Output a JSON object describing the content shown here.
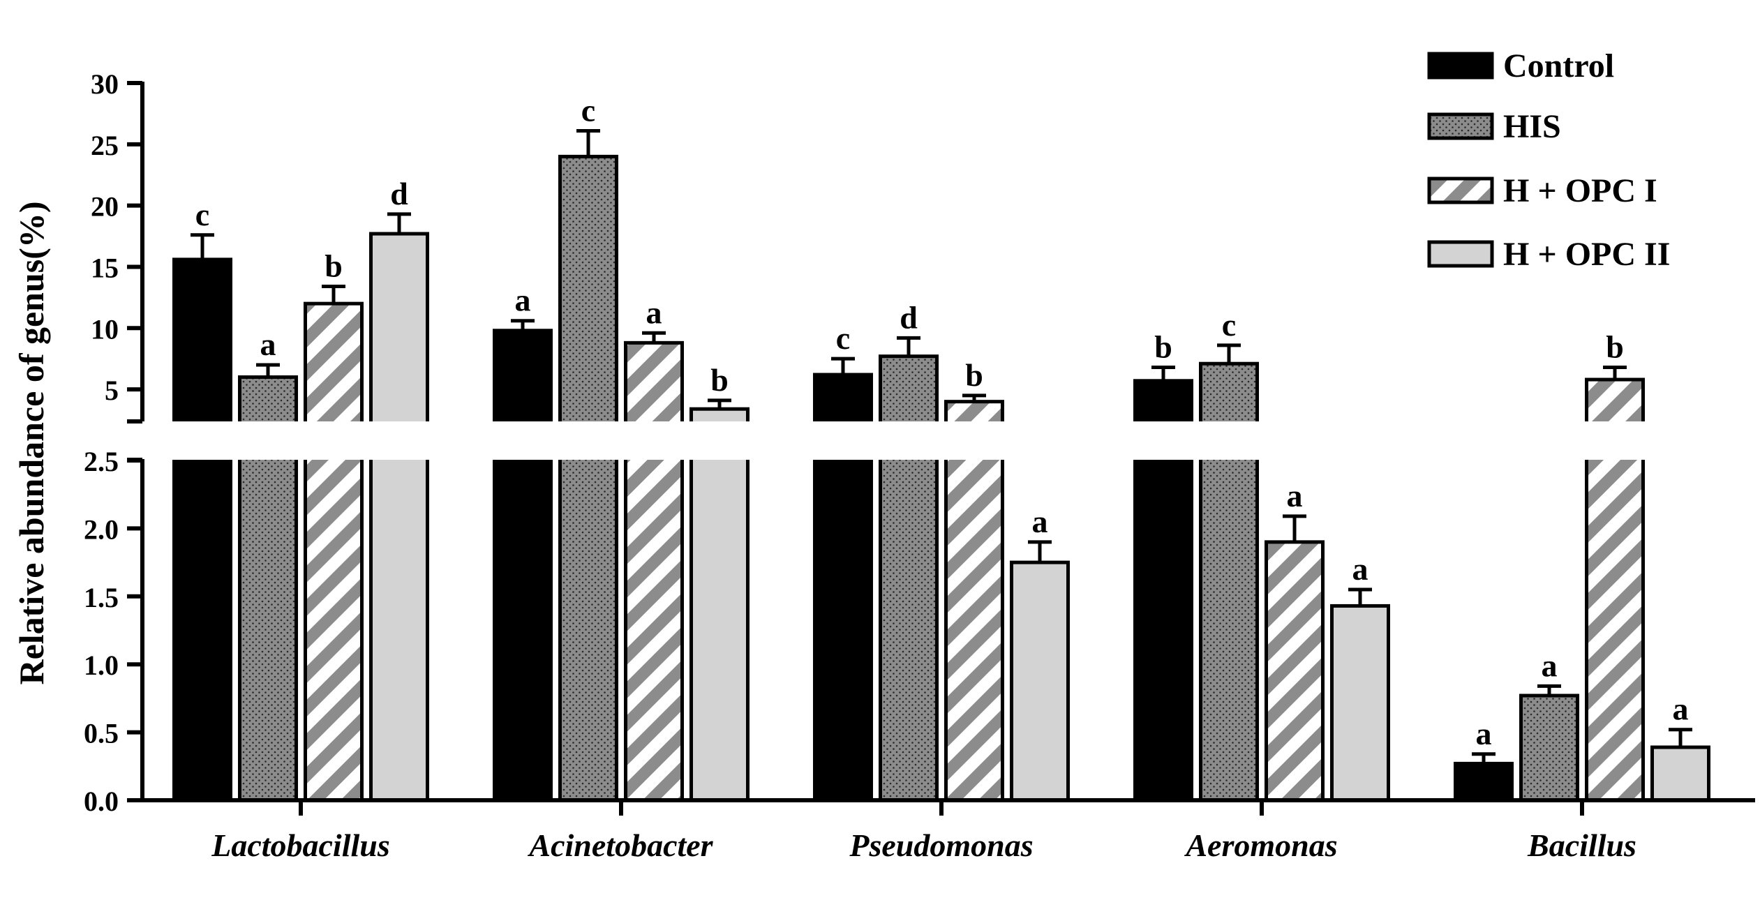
{
  "chart_data": {
    "type": "bar",
    "ylabel": "Relative abundance of genus(%)",
    "xlabel": "",
    "categories": [
      "Lactobacillus",
      "Acinetobacter",
      "Pseudomonas",
      "Aeromonas",
      "Bacillus"
    ],
    "series": [
      {
        "name": "Control",
        "fill": "#000000",
        "pattern": "solid",
        "values": [
          15.6,
          9.8,
          6.2,
          5.7,
          0.27
        ],
        "errors": [
          2.0,
          0.8,
          1.3,
          1.1,
          0.07
        ],
        "letters": [
          "c",
          "a",
          "c",
          "b",
          "a"
        ]
      },
      {
        "name": "HIS",
        "fill": "#8c8c8c",
        "pattern": "dotted",
        "values": [
          6.0,
          24.0,
          7.7,
          7.1,
          0.77
        ],
        "errors": [
          1.0,
          2.1,
          1.5,
          1.5,
          0.07
        ],
        "letters": [
          "a",
          "c",
          "d",
          "c",
          "a"
        ]
      },
      {
        "name": "H + OPC I",
        "fill": "#8c8c8c",
        "pattern": "striped",
        "values": [
          12.0,
          8.8,
          4.0,
          1.9,
          5.8
        ],
        "errors": [
          1.4,
          0.8,
          0.5,
          0.19,
          1.0
        ],
        "letters": [
          "b",
          "a",
          "b",
          "a",
          "b"
        ]
      },
      {
        "name": "H + OPC II",
        "fill": "#d3d3d3",
        "pattern": "solid",
        "values": [
          17.7,
          3.4,
          1.75,
          1.43,
          0.39
        ],
        "errors": [
          1.6,
          0.7,
          0.15,
          0.12,
          0.13
        ],
        "letters": [
          "d",
          "b",
          "a",
          "a",
          "a"
        ]
      }
    ],
    "axis_break": true,
    "lower_segment": {
      "ylim": [
        0,
        2.5
      ],
      "ticks": [
        "0.0",
        "0.5",
        "1.0",
        "1.5",
        "2.0",
        "2.5"
      ]
    },
    "upper_segment": {
      "ylim": [
        2.5,
        30
      ],
      "ticks": [
        "5",
        "10",
        "15",
        "20",
        "25",
        "30"
      ]
    },
    "legend": {
      "position": "top-right",
      "entries": [
        "Control",
        "HIS",
        "H + OPC I",
        "H + OPC II"
      ]
    },
    "grid": false
  }
}
